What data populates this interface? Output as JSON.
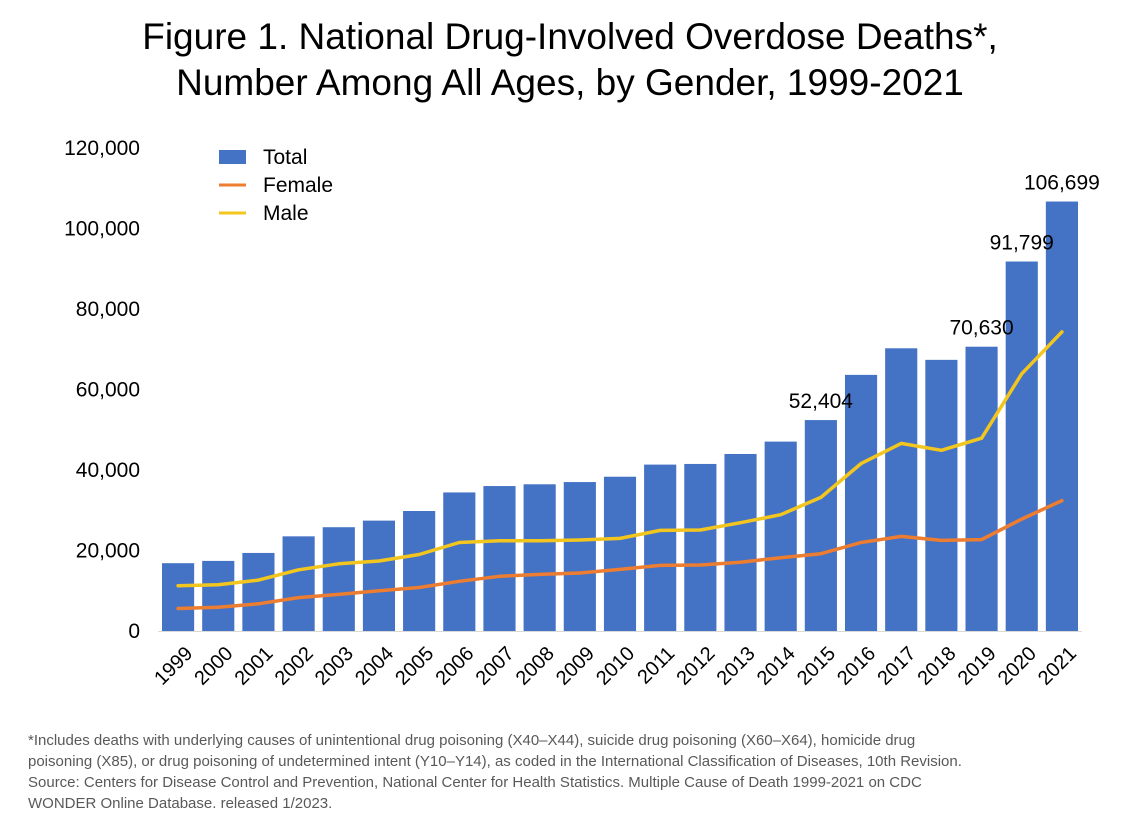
{
  "title_lines": [
    "Figure 1. National Drug-Involved Overdose Deaths*,",
    "Number Among All Ages, by Gender, 1999-2021"
  ],
  "footnote_lines": [
    "*Includes deaths with underlying causes of unintentional drug poisoning (X40–X44), suicide drug poisoning (X60–X64), homicide drug",
    "poisoning (X85), or drug poisoning of undetermined intent (Y10–Y14), as coded in the International Classification of Diseases, 10th Revision.",
    "Source: Centers for Disease Control and Prevention, National Center for Health Statistics. Multiple Cause of Death 1999-2021 on CDC",
    "WONDER Online Database. released 1/2023."
  ],
  "chart_data": {
    "type": "bar",
    "title": "Figure 1. National Drug-Involved Overdose Deaths*, Number Among All Ages, by Gender, 1999-2021",
    "xlabel": "",
    "ylabel": "",
    "ylim": [
      0,
      120000
    ],
    "yticks": [
      0,
      20000,
      40000,
      60000,
      80000,
      100000,
      120000
    ],
    "ytick_labels": [
      "0",
      "20,000",
      "40,000",
      "60,000",
      "80,000",
      "100,000",
      "120,000"
    ],
    "grid": false,
    "legend": "top-left",
    "categories": [
      "1999",
      "2000",
      "2001",
      "2002",
      "2003",
      "2004",
      "2005",
      "2006",
      "2007",
      "2008",
      "2009",
      "2010",
      "2011",
      "2012",
      "2013",
      "2014",
      "2015",
      "2016",
      "2017",
      "2018",
      "2019",
      "2020",
      "2021"
    ],
    "series": [
      {
        "name": "Total",
        "type": "bar",
        "color": "#4472C4",
        "values": [
          16849,
          17415,
          19394,
          23518,
          25785,
          27424,
          29813,
          34425,
          36010,
          36450,
          37004,
          38329,
          41340,
          41502,
          43982,
          47055,
          52404,
          63632,
          70237,
          67367,
          70630,
          91799,
          106699
        ]
      },
      {
        "name": "Female",
        "type": "line",
        "color": "#ED7D31",
        "values": [
          5591,
          5900,
          6750,
          8300,
          9100,
          10000,
          10800,
          12350,
          13600,
          14050,
          14400,
          15300,
          16300,
          16400,
          17100,
          18200,
          19200,
          22000,
          23500,
          22500,
          22700,
          27800,
          32400
        ]
      },
      {
        "name": "Male",
        "type": "line",
        "color": "#F2C61E",
        "values": [
          11258,
          11500,
          12650,
          15200,
          16700,
          17400,
          19000,
          22000,
          22400,
          22400,
          22600,
          23000,
          25000,
          25100,
          26900,
          28900,
          33200,
          41600,
          46600,
          44900,
          47900,
          63900,
          74300
        ]
      }
    ],
    "data_labels": [
      {
        "category": "2015",
        "text": "52,404"
      },
      {
        "category": "2019",
        "text": "70,630"
      },
      {
        "category": "2020",
        "text": "91,799"
      },
      {
        "category": "2021",
        "text": "106,699"
      }
    ]
  }
}
